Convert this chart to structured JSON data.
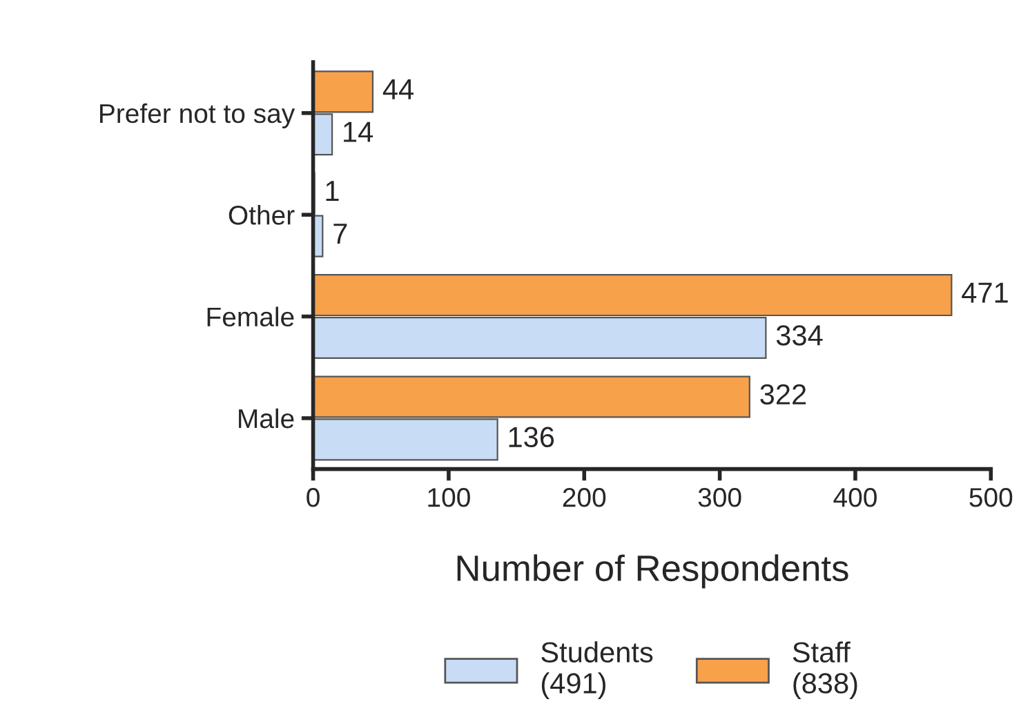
{
  "chart_data": {
    "type": "bar",
    "orientation": "horizontal",
    "categories": [
      "Prefer not to say",
      "Other",
      "Female",
      "Male"
    ],
    "series": [
      {
        "name": "Students\n(491)",
        "color": "#c9dcf5",
        "values": [
          14,
          7,
          334,
          136
        ]
      },
      {
        "name": "Staff\n(838)",
        "color": "#f7a14b",
        "values": [
          44,
          1,
          471,
          322
        ]
      }
    ],
    "xlabel": "Number of Respondents",
    "xlim": [
      0,
      500
    ],
    "xticks": [
      0,
      100,
      200,
      300,
      400,
      500
    ],
    "data_labels": true,
    "legend": "bottom",
    "grid": false
  }
}
